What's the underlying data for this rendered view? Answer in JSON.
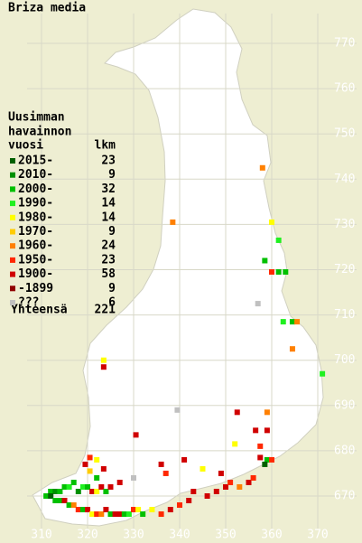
{
  "title": "Briza media",
  "legend": {
    "header": [
      "Uusimman",
      "havainnon",
      "vuosi"
    ],
    "count_header": "lkm",
    "entries": [
      {
        "label": "2015-",
        "count": 23,
        "color": "#006000"
      },
      {
        "label": "2010-",
        "count": 9,
        "color": "#009000"
      },
      {
        "label": "2000-",
        "count": 32,
        "color": "#00c000"
      },
      {
        "label": "1990-",
        "count": 14,
        "color": "#20f020"
      },
      {
        "label": "1980-",
        "count": 14,
        "color": "#ffff00"
      },
      {
        "label": "1970-",
        "count": 9,
        "color": "#ffcc00"
      },
      {
        "label": "1960-",
        "count": 24,
        "color": "#ff8000"
      },
      {
        "label": "1950-",
        "count": 23,
        "color": "#ff2800"
      },
      {
        "label": "1900-",
        "count": 58,
        "color": "#d00000"
      },
      {
        "label": "-1899",
        "count": 9,
        "color": "#900000"
      },
      {
        "label": "???",
        "count": 6,
        "color": "#c0c0c0"
      }
    ],
    "total_label": "Yhteensä",
    "total": 221
  },
  "axes": {
    "xticks": [
      310,
      320,
      330,
      340,
      350,
      360,
      370
    ],
    "yticks": [
      670,
      680,
      690,
      700,
      710,
      720,
      730,
      740,
      750,
      760,
      770
    ]
  },
  "points": [
    {
      "x": 358,
      "y": 742.5,
      "c": 6
    },
    {
      "x": 338.5,
      "y": 730.5,
      "c": 6
    },
    {
      "x": 360,
      "y": 730.5,
      "c": 4
    },
    {
      "x": 361.5,
      "y": 726.5,
      "c": 3
    },
    {
      "x": 358.5,
      "y": 722,
      "c": 2
    },
    {
      "x": 360,
      "y": 719.5,
      "c": 7
    },
    {
      "x": 361.5,
      "y": 719.5,
      "c": 2
    },
    {
      "x": 363,
      "y": 719.5,
      "c": 2
    },
    {
      "x": 357,
      "y": 712.5,
      "c": 10
    },
    {
      "x": 362.5,
      "y": 708.5,
      "c": 3
    },
    {
      "x": 364.5,
      "y": 708.5,
      "c": 2
    },
    {
      "x": 365.5,
      "y": 708.5,
      "c": 6
    },
    {
      "x": 364.5,
      "y": 702.5,
      "c": 6
    },
    {
      "x": 371,
      "y": 697,
      "c": 3
    },
    {
      "x": 323.5,
      "y": 700,
      "c": 4
    },
    {
      "x": 323.5,
      "y": 698.5,
      "c": 8
    },
    {
      "x": 339.5,
      "y": 689,
      "c": 10
    },
    {
      "x": 352.5,
      "y": 688.5,
      "c": 8
    },
    {
      "x": 359,
      "y": 688.5,
      "c": 6
    },
    {
      "x": 330.5,
      "y": 683.5,
      "c": 8
    },
    {
      "x": 352,
      "y": 681.5,
      "c": 4
    },
    {
      "x": 356.5,
      "y": 684.5,
      "c": 8
    },
    {
      "x": 359,
      "y": 684.5,
      "c": 8
    },
    {
      "x": 357.5,
      "y": 681,
      "c": 7
    },
    {
      "x": 357.5,
      "y": 678.5,
      "c": 8
    },
    {
      "x": 359,
      "y": 678,
      "c": 2
    },
    {
      "x": 358.5,
      "y": 677,
      "c": 0
    },
    {
      "x": 360,
      "y": 678,
      "c": 7
    },
    {
      "x": 320.5,
      "y": 678.5,
      "c": 7
    },
    {
      "x": 322,
      "y": 678,
      "c": 4
    },
    {
      "x": 319.5,
      "y": 677,
      "c": 8
    },
    {
      "x": 320.5,
      "y": 675.5,
      "c": 5
    },
    {
      "x": 323.5,
      "y": 676,
      "c": 8
    },
    {
      "x": 322,
      "y": 674,
      "c": 2
    },
    {
      "x": 312,
      "y": 671,
      "c": 2
    },
    {
      "x": 313,
      "y": 671,
      "c": 1
    },
    {
      "x": 314,
      "y": 671,
      "c": 2
    },
    {
      "x": 315,
      "y": 672,
      "c": 2
    },
    {
      "x": 316,
      "y": 672,
      "c": 3
    },
    {
      "x": 317,
      "y": 673,
      "c": 2
    },
    {
      "x": 318,
      "y": 671,
      "c": 1
    },
    {
      "x": 319,
      "y": 672,
      "c": 3
    },
    {
      "x": 320,
      "y": 672,
      "c": 2
    },
    {
      "x": 321,
      "y": 671,
      "c": 8
    },
    {
      "x": 322,
      "y": 671,
      "c": 4
    },
    {
      "x": 323,
      "y": 672,
      "c": 8
    },
    {
      "x": 324,
      "y": 671,
      "c": 2
    },
    {
      "x": 325,
      "y": 672,
      "c": 8
    },
    {
      "x": 311,
      "y": 670,
      "c": 2
    },
    {
      "x": 312,
      "y": 670,
      "c": 0
    },
    {
      "x": 313,
      "y": 669,
      "c": 2
    },
    {
      "x": 314,
      "y": 669,
      "c": 2
    },
    {
      "x": 315,
      "y": 669,
      "c": 8
    },
    {
      "x": 316,
      "y": 668,
      "c": 2
    },
    {
      "x": 317,
      "y": 668,
      "c": 6
    },
    {
      "x": 318,
      "y": 667,
      "c": 7
    },
    {
      "x": 319,
      "y": 667,
      "c": 2
    },
    {
      "x": 320,
      "y": 667,
      "c": 8
    },
    {
      "x": 321,
      "y": 666,
      "c": 4
    },
    {
      "x": 322,
      "y": 666,
      "c": 7
    },
    {
      "x": 323,
      "y": 666,
      "c": 6
    },
    {
      "x": 324,
      "y": 667,
      "c": 8
    },
    {
      "x": 325,
      "y": 666,
      "c": 2
    },
    {
      "x": 326,
      "y": 666,
      "c": 8
    },
    {
      "x": 327,
      "y": 666,
      "c": 8
    },
    {
      "x": 328,
      "y": 666,
      "c": 2
    },
    {
      "x": 329,
      "y": 666,
      "c": 3
    },
    {
      "x": 330,
      "y": 667,
      "c": 7
    },
    {
      "x": 331,
      "y": 667,
      "c": 4
    },
    {
      "x": 332,
      "y": 666,
      "c": 2
    },
    {
      "x": 334,
      "y": 667,
      "c": 4
    },
    {
      "x": 336,
      "y": 666,
      "c": 7
    },
    {
      "x": 338,
      "y": 667,
      "c": 8
    },
    {
      "x": 340,
      "y": 668,
      "c": 7
    },
    {
      "x": 342,
      "y": 669,
      "c": 8
    },
    {
      "x": 343,
      "y": 671,
      "c": 8
    },
    {
      "x": 346,
      "y": 670,
      "c": 8
    },
    {
      "x": 348,
      "y": 671,
      "c": 8
    },
    {
      "x": 350,
      "y": 672,
      "c": 8
    },
    {
      "x": 351,
      "y": 673,
      "c": 7
    },
    {
      "x": 353,
      "y": 672,
      "c": 6
    },
    {
      "x": 355,
      "y": 673,
      "c": 8
    },
    {
      "x": 356,
      "y": 674,
      "c": 7
    },
    {
      "x": 327,
      "y": 673,
      "c": 8
    },
    {
      "x": 330,
      "y": 674,
      "c": 10
    },
    {
      "x": 337,
      "y": 675,
      "c": 7
    },
    {
      "x": 336,
      "y": 677,
      "c": 8
    },
    {
      "x": 341,
      "y": 678,
      "c": 8
    },
    {
      "x": 345,
      "y": 676,
      "c": 4
    },
    {
      "x": 349,
      "y": 675,
      "c": 8
    }
  ]
}
